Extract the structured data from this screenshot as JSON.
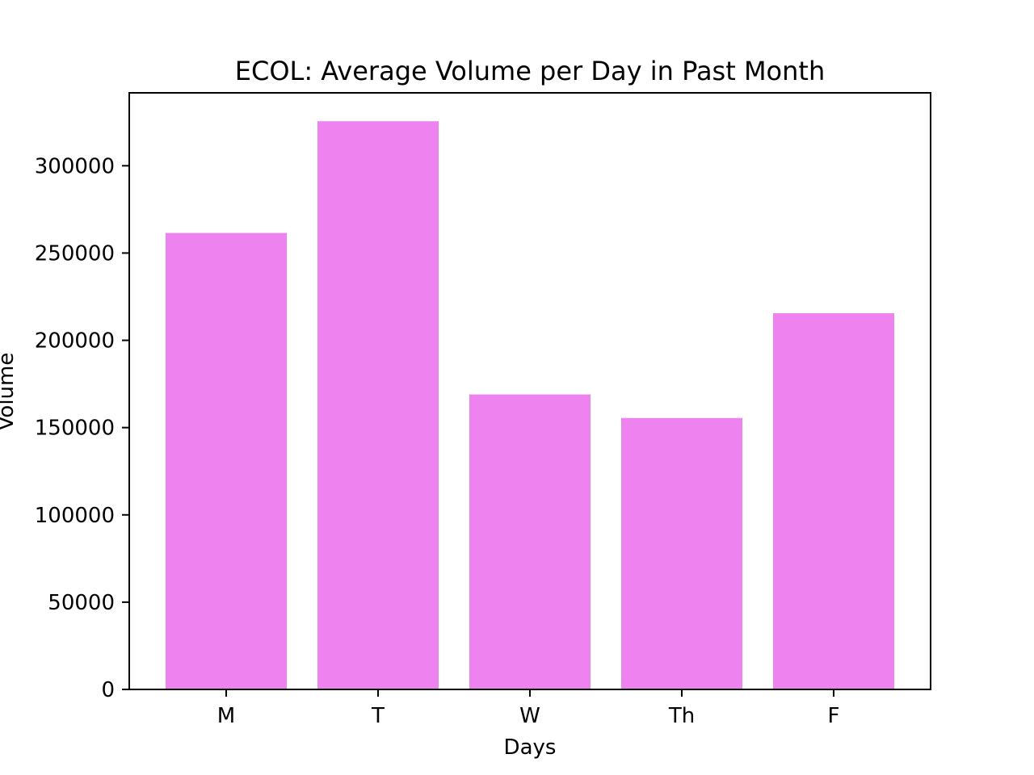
{
  "chart_data": {
    "type": "bar",
    "title": "ECOL: Average Volume per Day in Past Month",
    "xlabel": "Days",
    "ylabel": "Volume",
    "categories": [
      "M",
      "T",
      "W",
      "Th",
      "F"
    ],
    "values": [
      261500,
      325500,
      169000,
      155500,
      215500
    ],
    "ylim": [
      0,
      341775
    ],
    "yticks": [
      0,
      50000,
      100000,
      150000,
      200000,
      250000,
      300000
    ],
    "ytick_labels": [
      "0",
      "50000",
      "100000",
      "150000",
      "200000",
      "250000",
      "300000"
    ],
    "bar_color": "#ee82ee",
    "grid": false,
    "legend": "none"
  }
}
